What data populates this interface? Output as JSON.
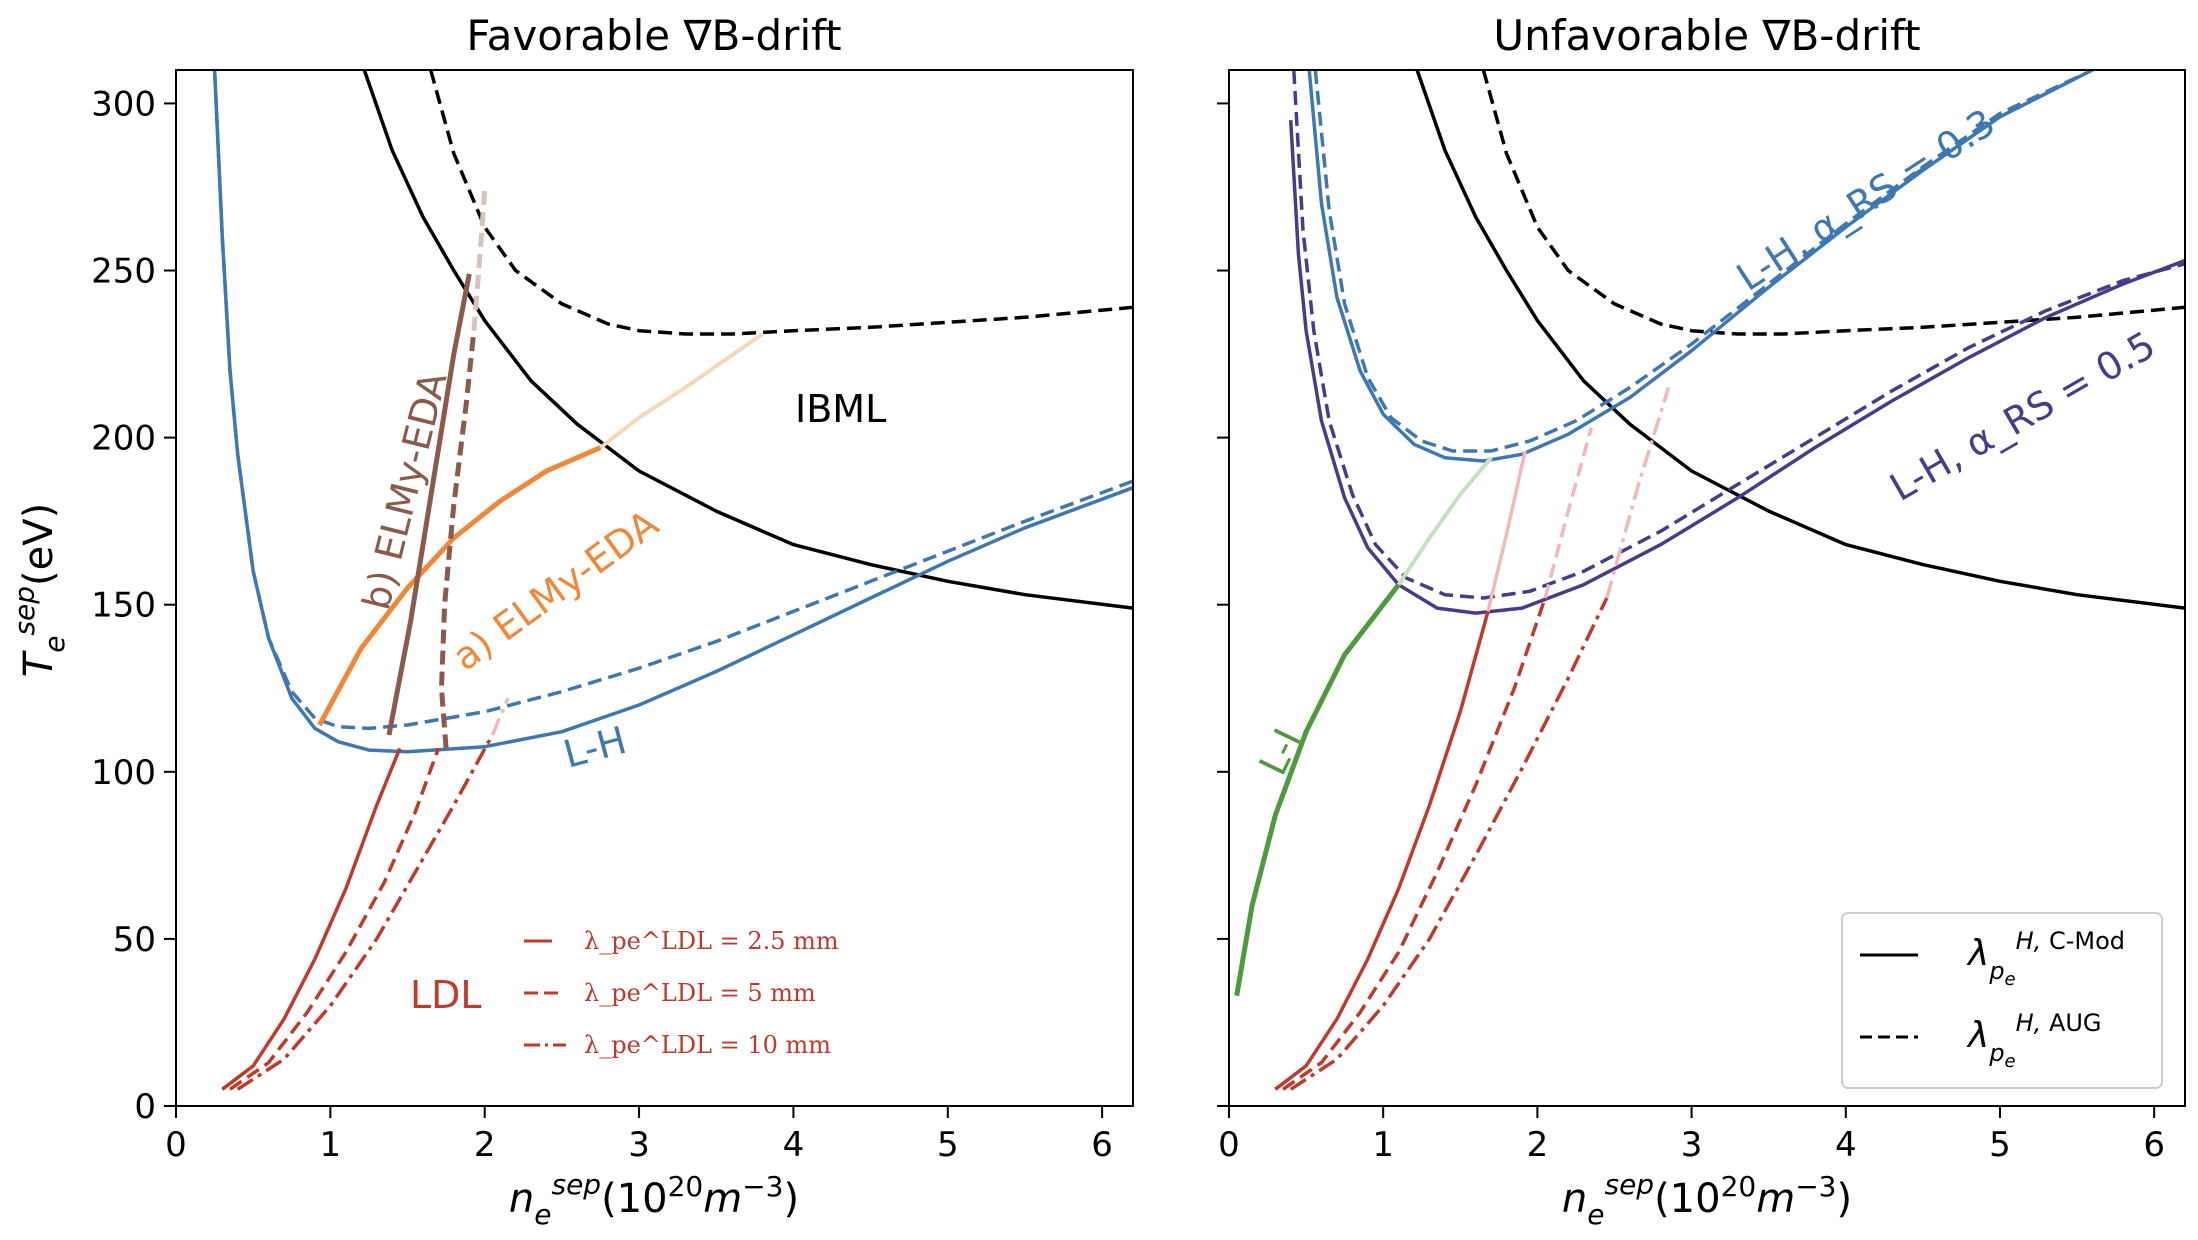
{
  "chart_data": [
    {
      "type": "line",
      "title": "Favorable ∇B-drift",
      "xlabel": "n_e^sep(10^20 m^-3)",
      "ylabel": "T_e^sep(eV)",
      "xlim": [
        0,
        6.2
      ],
      "ylim": [
        0,
        310
      ],
      "xticks": [
        "0",
        "1",
        "2",
        "3",
        "4",
        "5",
        "6"
      ],
      "yticks": [
        "0",
        "50",
        "100",
        "150",
        "200",
        "250",
        "300"
      ],
      "annotations": {
        "ibml": "IBML",
        "lh": "L-H",
        "ldl": "LDL",
        "eda_a": "a) ELMy-EDA",
        "eda_b": "b) ELMy-EDA"
      },
      "ldl_legend": {
        "l1": "λ_pe^LDL = 2.5 mm",
        "l2": "λ_pe^LDL = 5 mm",
        "l3": "λ_pe^LDL = 10 mm"
      },
      "series": [
        {
          "name": "IBML C-Mod",
          "color": "#000000",
          "style": "solid",
          "x": [
            1.22,
            1.4,
            1.6,
            1.8,
            2.0,
            2.3,
            2.6,
            3.0,
            3.5,
            4.0,
            4.5,
            5.0,
            5.5,
            6.2
          ],
          "y": [
            310,
            286,
            266,
            250,
            235,
            217,
            204,
            190,
            178,
            168,
            162,
            157,
            153,
            149
          ]
        },
        {
          "name": "IBML AUG",
          "color": "#000000",
          "style": "dashed",
          "x": [
            1.65,
            1.8,
            2.0,
            2.2,
            2.5,
            2.8,
            3.0,
            3.3,
            3.6,
            4.0,
            4.5,
            5.0,
            5.5,
            6.2
          ],
          "y": [
            310,
            285,
            263,
            250,
            240,
            234,
            232,
            231,
            231,
            232,
            233,
            234.5,
            236,
            239
          ]
        },
        {
          "name": "L-H C-Mod",
          "color": "#3d78b4",
          "style": "solid",
          "x": [
            0.25,
            0.3,
            0.35,
            0.4,
            0.5,
            0.6,
            0.75,
            0.9,
            1.05,
            1.25,
            1.5,
            2.0,
            2.5,
            3.0,
            3.5,
            4.0,
            4.5,
            5.0,
            5.5,
            6.2
          ],
          "y": [
            310,
            260,
            220,
            195,
            160,
            140,
            122,
            113,
            109,
            106.5,
            106,
            107.5,
            112,
            120,
            130,
            141,
            152,
            163,
            173,
            185
          ]
        },
        {
          "name": "L-H AUG",
          "color": "#3d78b4",
          "style": "dashed",
          "x": [
            0.25,
            0.3,
            0.35,
            0.4,
            0.5,
            0.6,
            0.75,
            0.9,
            1.05,
            1.25,
            1.5,
            2.0,
            2.5,
            3.0,
            3.5,
            4.0,
            4.5,
            5.0,
            5.5,
            6.2
          ],
          "y": [
            310,
            260,
            220,
            195,
            160,
            140,
            124,
            116,
            113.5,
            113,
            114,
            118,
            124,
            131,
            139,
            148,
            157,
            166,
            175,
            187
          ]
        },
        {
          "name": "LDL 2.5 mm",
          "color": "#c0392b",
          "style": "solid",
          "x": [
            0.3,
            0.5,
            0.7,
            0.9,
            1.1,
            1.3,
            1.45
          ],
          "y": [
            5,
            12,
            26,
            44,
            65,
            90,
            107
          ]
        },
        {
          "name": "LDL 5 mm",
          "color": "#c0392b",
          "style": "dashed",
          "x": [
            0.35,
            0.6,
            0.85,
            1.1,
            1.35,
            1.55,
            1.7
          ],
          "y": [
            5,
            13,
            28,
            46,
            67,
            88,
            107
          ]
        },
        {
          "name": "LDL 10 mm",
          "color": "#c0392b",
          "style": "dashdot",
          "x": [
            0.4,
            0.7,
            1.0,
            1.3,
            1.55,
            1.8,
            2.05
          ],
          "y": [
            5,
            14,
            30,
            50,
            70,
            90,
            111
          ]
        },
        {
          "name": "LDL 10 mm ext",
          "color": "#f2b8b8",
          "style": "dashdot",
          "x": [
            2.05,
            2.15
          ],
          "y": [
            111,
            122
          ]
        },
        {
          "name": "a) ELMy-EDA",
          "color": "#f0883a",
          "style": "solid",
          "width": 5,
          "x": [
            0.93,
            1.2,
            1.5,
            1.8,
            2.1,
            2.4,
            2.75
          ],
          "y": [
            114,
            137,
            155,
            170,
            181,
            190,
            197
          ]
        },
        {
          "name": "a) ELMy-EDA ext",
          "color": "#f8d6b6",
          "style": "solid",
          "width": 4,
          "x": [
            2.75,
            3.0,
            3.3,
            3.55,
            3.8
          ],
          "y": [
            197,
            206,
            215,
            223,
            231
          ]
        },
        {
          "name": "b) ELMy-EDA solid",
          "color": "#8c5a4b",
          "style": "solid",
          "width": 5,
          "x": [
            1.38,
            1.52,
            1.66,
            1.8,
            1.9
          ],
          "y": [
            111,
            145,
            185,
            225,
            249
          ]
        },
        {
          "name": "b) ELMy-EDA dashed",
          "color": "#8c5a4b",
          "style": "dashed",
          "width": 5,
          "x": [
            1.75,
            1.72,
            1.74,
            1.8,
            1.88,
            1.93
          ],
          "y": [
            107,
            125,
            150,
            180,
            210,
            232
          ]
        },
        {
          "name": "b) ELMy-EDA dashed ext",
          "color": "#d9c2bb",
          "style": "dashed",
          "width": 5,
          "x": [
            1.93,
            1.97,
            2.0
          ],
          "y": [
            232,
            255,
            274
          ]
        }
      ]
    },
    {
      "type": "line",
      "title": "Unfavorable ∇B-drift",
      "xlabel": "n_e^sep(10^20 m^-3)",
      "ylabel": "",
      "xlim": [
        0,
        6.2
      ],
      "ylim": [
        0,
        310
      ],
      "xticks": [
        "0",
        "1",
        "2",
        "3",
        "4",
        "5",
        "6"
      ],
      "annotations": {
        "lh03": "L-H, α_RS = 0.3",
        "lh05": "L-H, α_RS = 0.5",
        "li": "L-I"
      },
      "legend": {
        "cmod": "λ_pe^H, C-Mod",
        "aug": "λ_pe^H, AUG",
        "cmod_label": "C-Mod",
        "aug_label": "AUG"
      },
      "series": [
        {
          "name": "IBML C-Mod",
          "color": "#000000",
          "style": "solid",
          "x": [
            1.22,
            1.4,
            1.6,
            1.8,
            2.0,
            2.3,
            2.6,
            3.0,
            3.5,
            4.0,
            4.5,
            5.0,
            5.5,
            6.2
          ],
          "y": [
            310,
            286,
            266,
            250,
            235,
            217,
            204,
            190,
            178,
            168,
            162,
            157,
            153,
            149
          ]
        },
        {
          "name": "IBML AUG",
          "color": "#000000",
          "style": "dashed",
          "x": [
            1.65,
            1.8,
            2.0,
            2.2,
            2.5,
            2.8,
            3.0,
            3.3,
            3.6,
            4.0,
            4.5,
            5.0,
            5.5,
            6.2
          ],
          "y": [
            310,
            285,
            263,
            250,
            240,
            234,
            232,
            231,
            231,
            232,
            233,
            234.5,
            236,
            239
          ]
        },
        {
          "name": "L-H 0.3 C-Mod",
          "color": "#3d78b4",
          "style": "solid",
          "x": [
            0.52,
            0.6,
            0.7,
            0.85,
            1.0,
            1.2,
            1.4,
            1.65,
            1.9,
            2.2,
            2.6,
            3.0,
            3.5,
            4.0,
            4.5,
            5.0,
            5.6
          ],
          "y": [
            310,
            270,
            242,
            220,
            207,
            198,
            194,
            193,
            195,
            201,
            212,
            226,
            245,
            263,
            280,
            296,
            310
          ]
        },
        {
          "name": "L-H 0.3 AUG",
          "color": "#3d78b4",
          "style": "dashed",
          "x": [
            0.56,
            0.65,
            0.75,
            0.9,
            1.05,
            1.25,
            1.45,
            1.7,
            1.95,
            2.25,
            2.6,
            3.0,
            3.5,
            4.0,
            4.5,
            5.0,
            5.6
          ],
          "y": [
            310,
            268,
            240,
            218,
            206,
            199,
            196,
            196,
            199,
            205,
            215,
            228,
            246,
            264,
            281,
            297,
            310
          ]
        },
        {
          "name": "L-H 0.5 C-Mod",
          "color": "#4a3a8c",
          "style": "solid",
          "x": [
            0.4,
            0.45,
            0.5,
            0.6,
            0.75,
            0.9,
            1.1,
            1.35,
            1.6,
            1.9,
            2.3,
            2.8,
            3.3,
            3.8,
            4.3,
            4.8,
            5.3,
            5.8,
            6.2
          ],
          "y": [
            295,
            255,
            232,
            205,
            182,
            167,
            156,
            149,
            147.5,
            149,
            156,
            168,
            182,
            197,
            211,
            224,
            236,
            246,
            253
          ]
        },
        {
          "name": "L-H 0.5 AUG",
          "color": "#4a3a8c",
          "style": "dashed",
          "x": [
            0.42,
            0.48,
            0.55,
            0.65,
            0.8,
            0.95,
            1.15,
            1.4,
            1.65,
            1.95,
            2.3,
            2.8,
            3.3,
            3.8,
            4.3,
            4.8,
            5.3,
            5.8,
            6.2
          ],
          "y": [
            310,
            262,
            232,
            205,
            183,
            168,
            158,
            153,
            152,
            154,
            160,
            172,
            186,
            200,
            214,
            227,
            238,
            247,
            252
          ]
        },
        {
          "name": "L-I",
          "color": "#4e9a3e",
          "style": "solid",
          "width": 5,
          "x": [
            0.05,
            0.15,
            0.3,
            0.5,
            0.75,
            1.0,
            1.1
          ],
          "y": [
            33,
            60,
            87,
            112,
            135,
            150,
            156
          ]
        },
        {
          "name": "L-I ext",
          "color": "#c5e2be",
          "style": "solid",
          "width": 4,
          "x": [
            1.1,
            1.3,
            1.5,
            1.7
          ],
          "y": [
            156,
            170,
            183,
            194
          ]
        },
        {
          "name": "LDL 2.5 mm",
          "color": "#c0392b",
          "style": "solid",
          "x": [
            0.3,
            0.5,
            0.7,
            0.9,
            1.1,
            1.3,
            1.5,
            1.68
          ],
          "y": [
            5,
            12,
            26,
            44,
            65,
            90,
            118,
            148
          ]
        },
        {
          "name": "LDL 2.5 mm ext",
          "color": "#f2b8b8",
          "style": "solid",
          "x": [
            1.68,
            1.8,
            1.92
          ],
          "y": [
            148,
            171,
            196
          ]
        },
        {
          "name": "LDL 5 mm",
          "color": "#c0392b",
          "style": "dashed",
          "x": [
            0.35,
            0.6,
            0.85,
            1.1,
            1.35,
            1.6,
            1.85,
            2.05
          ],
          "y": [
            5,
            13,
            28,
            46,
            70,
            96,
            125,
            152
          ]
        },
        {
          "name": "LDL 5 mm ext",
          "color": "#f2b8b8",
          "style": "dashed",
          "x": [
            2.05,
            2.2,
            2.35
          ],
          "y": [
            152,
            178,
            203
          ]
        },
        {
          "name": "LDL 10 mm",
          "color": "#c0392b",
          "style": "dashdot",
          "x": [
            0.4,
            0.7,
            1.0,
            1.3,
            1.6,
            1.9,
            2.2,
            2.45
          ],
          "y": [
            5,
            14,
            30,
            50,
            75,
            101,
            128,
            152
          ]
        },
        {
          "name": "LDL 10 mm ext",
          "color": "#f2b8b8",
          "style": "dashdot",
          "x": [
            2.45,
            2.65,
            2.85
          ],
          "y": [
            152,
            185,
            215
          ]
        }
      ]
    }
  ]
}
